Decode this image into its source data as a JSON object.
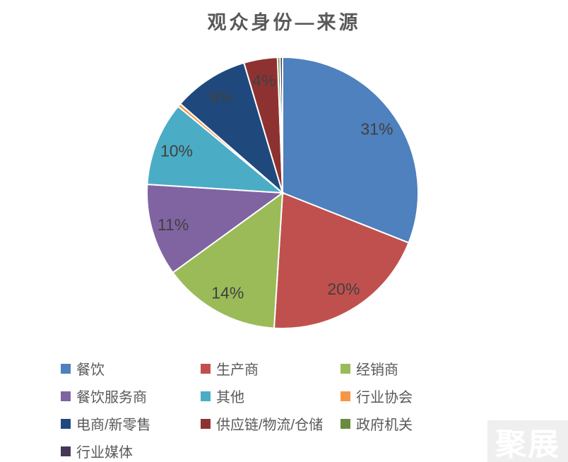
{
  "chart_data": {
    "type": "pie",
    "title": "观众身份—来源",
    "start_angle_deg": 0,
    "direction": "clockwise",
    "legend_position": "bottom",
    "title_color": "#595959",
    "label_color": "#404040",
    "legend_text_color": "#595959",
    "slice_border_color": "#ffffff",
    "slices": [
      {
        "name": "餐饮",
        "value": 31,
        "label": "31%",
        "color": "#4E81BD"
      },
      {
        "name": "生产商",
        "value": 20,
        "label": "20%",
        "color": "#C0504D"
      },
      {
        "name": "经销商",
        "value": 14,
        "label": "14%",
        "color": "#9BBB59"
      },
      {
        "name": "餐饮服务商",
        "value": 11,
        "label": "11%",
        "color": "#8064A2"
      },
      {
        "name": "其他",
        "value": 10,
        "label": "10%",
        "color": "#4BACC6"
      },
      {
        "name": "行业协会",
        "value": 0.4,
        "label": "",
        "color": "#F79646"
      },
      {
        "name": "电商/新零售",
        "value": 9,
        "label": "9%",
        "color": "#1F497D"
      },
      {
        "name": "供应链/物流/仓储",
        "value": 4,
        "label": "4%",
        "color": "#8E3231"
      },
      {
        "name": "政府机关",
        "value": 0.3,
        "label": "",
        "color": "#698C3C"
      },
      {
        "name": "行业媒体",
        "value": 0.3,
        "label": "",
        "color": "#453759"
      }
    ]
  },
  "watermark": {
    "text": "聚展"
  }
}
